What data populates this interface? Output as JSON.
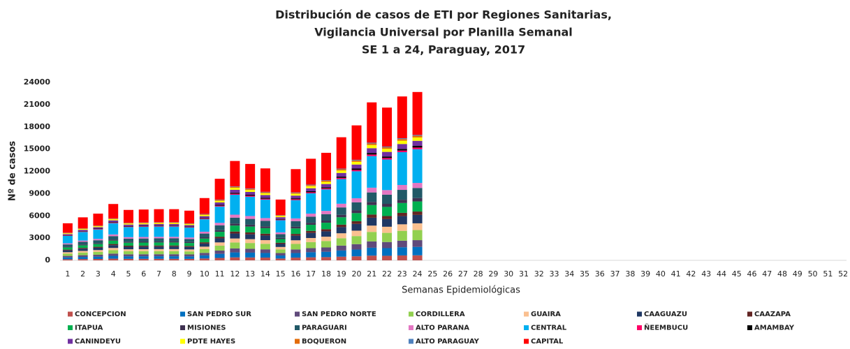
{
  "chart_data": {
    "type": "stacked_bar",
    "title": [
      "Distribución de casos de ETI por Regiones Sanitarias,",
      "Vigilancia Universal por Planilla Semanal",
      "SE 1 a 24, Paraguay,  2017"
    ],
    "y_label": "Nº de casos",
    "x_label": "Semanas Epidemiológicas",
    "ylim": [
      0,
      24000
    ],
    "yticks": [
      0,
      3000,
      6000,
      9000,
      12000,
      15000,
      18000,
      21000,
      24000
    ],
    "categories": [
      "1",
      "2",
      "3",
      "4",
      "5",
      "6",
      "7",
      "8",
      "9",
      "10",
      "11",
      "12",
      "13",
      "14",
      "15",
      "16",
      "17",
      "18",
      "19",
      "20",
      "21",
      "22",
      "23",
      "24",
      "25",
      "26",
      "27",
      "28",
      "29",
      "30",
      "31",
      "32",
      "33",
      "34",
      "35",
      "36",
      "37",
      "38",
      "39",
      "40",
      "41",
      "42",
      "43",
      "44",
      "45",
      "46",
      "47",
      "48",
      "49",
      "50",
      "51",
      "52"
    ],
    "series": [
      {
        "name": "CONCEPCION",
        "color": "#c0504d",
        "values": [
          150,
          174,
          189,
          228,
          204,
          206,
          207,
          207,
          201,
          252,
          330,
          402,
          390,
          372,
          246,
          369,
          411,
          435,
          498,
          546,
          639,
          618,
          663,
          681,
          null,
          null,
          null,
          null,
          null,
          null,
          null,
          null,
          null,
          null,
          null,
          null,
          null,
          null,
          null,
          null,
          null,
          null,
          null,
          null,
          null,
          null,
          null,
          null,
          null,
          null,
          null,
          null
        ]
      },
      {
        "name": "SAN PEDRO SUR",
        "color": "#0070c0",
        "values": [
          250,
          290,
          315,
          380,
          340,
          343,
          345,
          345,
          335,
          420,
          550,
          670,
          650,
          620,
          410,
          615,
          685,
          725,
          830,
          910,
          1065,
          1030,
          1105,
          1135,
          null,
          null,
          null,
          null,
          null,
          null,
          null,
          null,
          null,
          null,
          null,
          null,
          null,
          null,
          null,
          null,
          null,
          null,
          null,
          null,
          null,
          null,
          null,
          null,
          null,
          null,
          null,
          null
        ]
      },
      {
        "name": "SAN PEDRO NORTE",
        "color": "#604a7b",
        "values": [
          200,
          232,
          252,
          304,
          272,
          274,
          276,
          276,
          268,
          336,
          440,
          536,
          520,
          496,
          328,
          492,
          548,
          580,
          664,
          728,
          852,
          824,
          884,
          908,
          null,
          null,
          null,
          null,
          null,
          null,
          null,
          null,
          null,
          null,
          null,
          null,
          null,
          null,
          null,
          null,
          null,
          null,
          null,
          null,
          null,
          null,
          null,
          null,
          null,
          null,
          null,
          null
        ]
      },
      {
        "name": "CORDILLERA",
        "color": "#92d050",
        "values": [
          300,
          348,
          378,
          456,
          408,
          411,
          414,
          414,
          402,
          504,
          660,
          804,
          780,
          744,
          492,
          738,
          822,
          870,
          996,
          1092,
          1278,
          1236,
          1326,
          1362,
          null,
          null,
          null,
          null,
          null,
          null,
          null,
          null,
          null,
          null,
          null,
          null,
          null,
          null,
          null,
          null,
          null,
          null,
          null,
          null,
          null,
          null,
          null,
          null,
          null,
          null,
          null,
          null
        ]
      },
      {
        "name": "GUAIRA",
        "color": "#fac090",
        "values": [
          200,
          232,
          252,
          304,
          272,
          274,
          276,
          276,
          268,
          336,
          440,
          536,
          520,
          496,
          328,
          492,
          548,
          580,
          664,
          728,
          852,
          824,
          884,
          908,
          null,
          null,
          null,
          null,
          null,
          null,
          null,
          null,
          null,
          null,
          null,
          null,
          null,
          null,
          null,
          null,
          null,
          null,
          null,
          null,
          null,
          null,
          null,
          null,
          null,
          null,
          null,
          null
        ]
      },
      {
        "name": "CAAGUAZU",
        "color": "#1f3864",
        "values": [
          250,
          290,
          315,
          380,
          340,
          343,
          345,
          345,
          335,
          420,
          550,
          670,
          650,
          620,
          410,
          615,
          685,
          725,
          830,
          910,
          1065,
          1030,
          1105,
          1135,
          null,
          null,
          null,
          null,
          null,
          null,
          null,
          null,
          null,
          null,
          null,
          null,
          null,
          null,
          null,
          null,
          null,
          null,
          null,
          null,
          null,
          null,
          null,
          null,
          null,
          null,
          null,
          null
        ]
      },
      {
        "name": "CAAZAPA",
        "color": "#632523",
        "values": [
          100,
          116,
          126,
          152,
          136,
          137,
          138,
          138,
          134,
          168,
          220,
          268,
          260,
          248,
          164,
          246,
          274,
          290,
          332,
          364,
          426,
          412,
          442,
          454,
          null,
          null,
          null,
          null,
          null,
          null,
          null,
          null,
          null,
          null,
          null,
          null,
          null,
          null,
          null,
          null,
          null,
          null,
          null,
          null,
          null,
          null,
          null,
          null,
          null,
          null,
          null,
          null
        ]
      },
      {
        "name": "ITAPUA",
        "color": "#00b050",
        "values": [
          300,
          348,
          378,
          456,
          408,
          411,
          414,
          414,
          402,
          504,
          660,
          804,
          780,
          744,
          492,
          738,
          822,
          870,
          996,
          1092,
          1278,
          1236,
          1326,
          1362,
          null,
          null,
          null,
          null,
          null,
          null,
          null,
          null,
          null,
          null,
          null,
          null,
          null,
          null,
          null,
          null,
          null,
          null,
          null,
          null,
          null,
          null,
          null,
          null,
          null,
          null,
          null,
          null
        ]
      },
      {
        "name": "MISIONES",
        "color": "#3f3151",
        "values": [
          100,
          116,
          126,
          152,
          136,
          137,
          138,
          138,
          134,
          168,
          220,
          268,
          260,
          248,
          164,
          246,
          274,
          290,
          332,
          364,
          426,
          412,
          442,
          454,
          null,
          null,
          null,
          null,
          null,
          null,
          null,
          null,
          null,
          null,
          null,
          null,
          null,
          null,
          null,
          null,
          null,
          null,
          null,
          null,
          null,
          null,
          null,
          null,
          null,
          null,
          null,
          null
        ]
      },
      {
        "name": "PARAGUARI",
        "color": "#215967",
        "values": [
          300,
          348,
          378,
          456,
          408,
          411,
          414,
          414,
          402,
          504,
          660,
          804,
          780,
          744,
          492,
          738,
          822,
          870,
          996,
          1092,
          1278,
          1236,
          1326,
          1362,
          null,
          null,
          null,
          null,
          null,
          null,
          null,
          null,
          null,
          null,
          null,
          null,
          null,
          null,
          null,
          null,
          null,
          null,
          null,
          null,
          null,
          null,
          null,
          null,
          null,
          null,
          null,
          null
        ]
      },
      {
        "name": "ALTO PARANA",
        "color": "#e377c2",
        "values": [
          150,
          174,
          189,
          228,
          204,
          206,
          207,
          207,
          201,
          252,
          330,
          402,
          390,
          372,
          246,
          369,
          411,
          435,
          498,
          546,
          639,
          618,
          663,
          681,
          null,
          null,
          null,
          null,
          null,
          null,
          null,
          null,
          null,
          null,
          null,
          null,
          null,
          null,
          null,
          null,
          null,
          null,
          null,
          null,
          null,
          null,
          null,
          null,
          null,
          null,
          null,
          null
        ]
      },
      {
        "name": "CENTRAL",
        "color": "#00b0f0",
        "values": [
          1000,
          1160,
          1260,
          1520,
          1360,
          1370,
          1380,
          1380,
          1340,
          1680,
          2200,
          2680,
          2600,
          2480,
          1640,
          2460,
          2740,
          2900,
          3320,
          3640,
          4260,
          4120,
          4420,
          4540,
          null,
          null,
          null,
          null,
          null,
          null,
          null,
          null,
          null,
          null,
          null,
          null,
          null,
          null,
          null,
          null,
          null,
          null,
          null,
          null,
          null,
          null,
          null,
          null,
          null,
          null,
          null,
          null
        ]
      },
      {
        "name": "ÑEEMBUCU",
        "color": "#ff0066",
        "values": [
          50,
          58,
          63,
          76,
          68,
          69,
          69,
          69,
          67,
          84,
          110,
          134,
          130,
          124,
          82,
          123,
          137,
          145,
          166,
          182,
          213,
          206,
          221,
          227,
          null,
          null,
          null,
          null,
          null,
          null,
          null,
          null,
          null,
          null,
          null,
          null,
          null,
          null,
          null,
          null,
          null,
          null,
          null,
          null,
          null,
          null,
          null,
          null,
          null,
          null,
          null,
          null
        ]
      },
      {
        "name": "AMAMBAY",
        "color": "#000000",
        "values": [
          50,
          58,
          63,
          76,
          68,
          69,
          69,
          69,
          67,
          84,
          110,
          134,
          130,
          124,
          82,
          123,
          137,
          145,
          166,
          182,
          213,
          206,
          221,
          227,
          null,
          null,
          null,
          null,
          null,
          null,
          null,
          null,
          null,
          null,
          null,
          null,
          null,
          null,
          null,
          null,
          null,
          null,
          null,
          null,
          null,
          null,
          null,
          null,
          null,
          null,
          null,
          null
        ]
      },
      {
        "name": "CANINDEYU",
        "color": "#7030a0",
        "values": [
          150,
          174,
          189,
          228,
          204,
          206,
          207,
          207,
          201,
          252,
          330,
          402,
          390,
          372,
          246,
          369,
          411,
          435,
          498,
          546,
          639,
          618,
          663,
          681,
          null,
          null,
          null,
          null,
          null,
          null,
          null,
          null,
          null,
          null,
          null,
          null,
          null,
          null,
          null,
          null,
          null,
          null,
          null,
          null,
          null,
          null,
          null,
          null,
          null,
          null,
          null,
          null
        ]
      },
      {
        "name": "PDTE HAYES",
        "color": "#ffff00",
        "values": [
          100,
          116,
          126,
          152,
          136,
          137,
          138,
          138,
          134,
          168,
          220,
          268,
          260,
          248,
          164,
          246,
          274,
          290,
          332,
          364,
          426,
          412,
          442,
          454,
          null,
          null,
          null,
          null,
          null,
          null,
          null,
          null,
          null,
          null,
          null,
          null,
          null,
          null,
          null,
          null,
          null,
          null,
          null,
          null,
          null,
          null,
          null,
          null,
          null,
          null,
          null,
          null
        ]
      },
      {
        "name": "BOQUERON",
        "color": "#e36c09",
        "values": [
          50,
          58,
          63,
          76,
          68,
          69,
          69,
          69,
          67,
          84,
          110,
          134,
          130,
          124,
          82,
          123,
          137,
          145,
          166,
          182,
          213,
          206,
          221,
          227,
          null,
          null,
          null,
          null,
          null,
          null,
          null,
          null,
          null,
          null,
          null,
          null,
          null,
          null,
          null,
          null,
          null,
          null,
          null,
          null,
          null,
          null,
          null,
          null,
          null,
          null,
          null,
          null
        ]
      },
      {
        "name": "ALTO PARAGUAY",
        "color": "#4f81bd",
        "values": [
          25,
          29,
          32,
          38,
          34,
          34,
          35,
          35,
          34,
          42,
          55,
          67,
          65,
          62,
          41,
          62,
          69,
          73,
          83,
          91,
          107,
          103,
          111,
          114,
          null,
          null,
          null,
          null,
          null,
          null,
          null,
          null,
          null,
          null,
          null,
          null,
          null,
          null,
          null,
          null,
          null,
          null,
          null,
          null,
          null,
          null,
          null,
          null,
          null,
          null,
          null,
          null
        ]
      },
      {
        "name": "CAPITAL",
        "color": "#ff0000",
        "values": [
          1275,
          1479,
          1607,
          1938,
          1734,
          1747,
          1760,
          1760,
          1709,
          2142,
          2805,
          3417,
          3315,
          3162,
          2091,
          3137,
          3494,
          3698,
          4233,
          4641,
          5432,
          5253,
          5636,
          5789,
          null,
          null,
          null,
          null,
          null,
          null,
          null,
          null,
          null,
          null,
          null,
          null,
          null,
          null,
          null,
          null,
          null,
          null,
          null,
          null,
          null,
          null,
          null,
          null,
          null,
          null,
          null,
          null
        ]
      }
    ]
  }
}
